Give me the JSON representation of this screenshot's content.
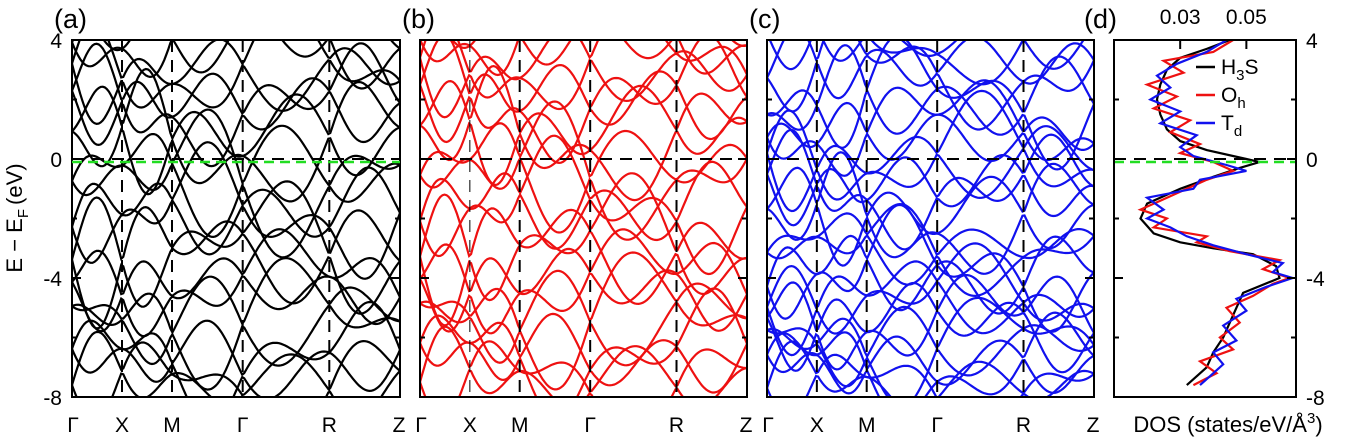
{
  "figure": {
    "ylabel_main": "E − E",
    "ylabel_sub": "F",
    "ylabel_unit": "(eV)"
  },
  "chart_data": [
    {
      "type": "line",
      "panel_label": "(a)",
      "color": "#000000",
      "ylim": [
        -8,
        4
      ],
      "yticks": [
        "4",
        "0",
        "-4",
        "-8"
      ],
      "kpath": [
        "Γ",
        "X",
        "M",
        "Γ",
        "R",
        "Z"
      ],
      "kpath_positions": [
        0,
        0.5,
        1.0,
        1.707,
        2.573,
        3.28
      ],
      "fermi_line_color": "#22dd22",
      "fermi_line_value": -0.1,
      "band_families": [
        {
          "base": -7.6,
          "amp": 1.6,
          "freq": 1.0
        },
        {
          "base": -6.8,
          "amp": 1.8,
          "freq": 1.3
        },
        {
          "base": -5.4,
          "amp": 2.0,
          "freq": 0.8
        },
        {
          "base": -4.2,
          "amp": 1.5,
          "freq": 1.7
        },
        {
          "base": -3.0,
          "amp": 2.2,
          "freq": 1.1
        },
        {
          "base": -1.8,
          "amp": 1.9,
          "freq": 1.5
        },
        {
          "base": -0.6,
          "amp": 2.4,
          "freq": 0.9
        },
        {
          "base": 0.6,
          "amp": 2.1,
          "freq": 1.4
        },
        {
          "base": 1.8,
          "amp": 1.7,
          "freq": 1.9
        },
        {
          "base": 3.0,
          "amp": 1.9,
          "freq": 1.2
        },
        {
          "base": 4.2,
          "amp": 1.6,
          "freq": 1.6
        }
      ]
    },
    {
      "type": "line",
      "panel_label": "(b)",
      "color": "#ee1111",
      "ylim": [
        -8,
        4
      ],
      "kpath": [
        "Γ",
        "X",
        "M",
        "Γ",
        "R",
        "Z"
      ],
      "kpath_positions": [
        0,
        0.5,
        1.0,
        1.707,
        2.573,
        3.28
      ],
      "band_families": [
        {
          "base": -7.5,
          "amp": 1.7,
          "freq": 1.1
        },
        {
          "base": -6.6,
          "amp": 1.8,
          "freq": 1.4
        },
        {
          "base": -5.3,
          "amp": 2.1,
          "freq": 0.8
        },
        {
          "base": -4.1,
          "amp": 1.6,
          "freq": 1.8
        },
        {
          "base": -2.9,
          "amp": 2.2,
          "freq": 1.2
        },
        {
          "base": -1.6,
          "amp": 1.9,
          "freq": 1.6
        },
        {
          "base": -0.4,
          "amp": 2.3,
          "freq": 1.0
        },
        {
          "base": 0.8,
          "amp": 2.0,
          "freq": 1.5
        },
        {
          "base": 2.0,
          "amp": 1.8,
          "freq": 1.9
        },
        {
          "base": 3.2,
          "amp": 1.9,
          "freq": 1.3
        },
        {
          "base": 4.3,
          "amp": 1.5,
          "freq": 1.7
        }
      ]
    },
    {
      "type": "line",
      "panel_label": "(c)",
      "color": "#1111ee",
      "ylim": [
        -8,
        4
      ],
      "kpath": [
        "Γ",
        "X",
        "M",
        "Γ",
        "R",
        "Z"
      ],
      "kpath_positions": [
        0,
        0.5,
        1.0,
        1.707,
        2.573,
        3.28
      ],
      "band_families": [
        {
          "base": -7.7,
          "amp": 1.4,
          "freq": 1.2
        },
        {
          "base": -7.0,
          "amp": 1.5,
          "freq": 1.6
        },
        {
          "base": -6.2,
          "amp": 1.7,
          "freq": 0.9
        },
        {
          "base": -5.4,
          "amp": 1.6,
          "freq": 1.9
        },
        {
          "base": -4.6,
          "amp": 1.5,
          "freq": 1.3
        },
        {
          "base": -3.8,
          "amp": 1.8,
          "freq": 1.7
        },
        {
          "base": -3.0,
          "amp": 1.4,
          "freq": 1.0
        },
        {
          "base": -2.0,
          "amp": 1.9,
          "freq": 1.4
        },
        {
          "base": -1.0,
          "amp": 1.6,
          "freq": 2.0
        },
        {
          "base": 0.0,
          "amp": 1.8,
          "freq": 1.1
        },
        {
          "base": 1.0,
          "amp": 1.5,
          "freq": 1.8
        },
        {
          "base": 2.0,
          "amp": 1.9,
          "freq": 1.3
        },
        {
          "base": 3.0,
          "amp": 1.6,
          "freq": 1.6
        },
        {
          "base": 4.0,
          "amp": 1.4,
          "freq": 1.0
        }
      ]
    },
    {
      "type": "line",
      "panel_label": "(d)",
      "xlabel": "DOS (states/eV/Å",
      "xlabel_sup": "3",
      "xlabel_close": ")",
      "xticks_top": [
        "0.03",
        "0.05"
      ],
      "yticks_right": [
        "4",
        "0",
        "-4",
        "-8"
      ],
      "xlim": [
        0.01,
        0.065
      ],
      "ylim": [
        -8,
        4
      ],
      "legend_placement": "top-right",
      "series": [
        {
          "name": "H",
          "name_sub": "3",
          "name_tail": "S",
          "color": "#000000",
          "energy": [
            -7.6,
            -7,
            -6.5,
            -6,
            -5.5,
            -5,
            -4.5,
            -4,
            -3.6,
            -3.2,
            -3,
            -2.8,
            -2.5,
            -2,
            -1.5,
            -1,
            -0.6,
            -0.3,
            -0.1,
            0,
            0.3,
            0.6,
            1,
            1.5,
            2,
            2.5,
            3,
            3.4,
            3.7,
            4
          ],
          "dos": [
            0.032,
            0.038,
            0.04,
            0.043,
            0.045,
            0.047,
            0.049,
            0.06,
            0.059,
            0.052,
            0.04,
            0.03,
            0.022,
            0.018,
            0.02,
            0.03,
            0.04,
            0.048,
            0.054,
            0.05,
            0.038,
            0.03,
            0.026,
            0.024,
            0.023,
            0.024,
            0.026,
            0.03,
            0.038,
            0.045
          ]
        },
        {
          "name": "O",
          "name_sub": "h",
          "name_tail": "",
          "color": "#ee1111",
          "energy": [
            -7.6,
            -7.2,
            -6.8,
            -6.4,
            -6,
            -5.5,
            -5,
            -4.6,
            -4.2,
            -4,
            -3.7,
            -3.4,
            -3.1,
            -2.8,
            -2.6,
            -2.3,
            -2,
            -1.7,
            -1.4,
            -1,
            -0.7,
            -0.4,
            -0.1,
            0.2,
            0.5,
            0.9,
            1.3,
            1.7,
            2.1,
            2.5,
            2.9,
            3.3,
            3.6,
            4
          ],
          "dos": [
            0.034,
            0.041,
            0.036,
            0.046,
            0.042,
            0.048,
            0.044,
            0.052,
            0.058,
            0.063,
            0.055,
            0.06,
            0.045,
            0.035,
            0.038,
            0.022,
            0.026,
            0.018,
            0.024,
            0.032,
            0.038,
            0.046,
            0.04,
            0.03,
            0.036,
            0.027,
            0.033,
            0.022,
            0.029,
            0.02,
            0.031,
            0.025,
            0.04,
            0.046
          ]
        },
        {
          "name": "T",
          "name_sub": "d",
          "name_tail": "",
          "color": "#1111ee",
          "energy": [
            -7.6,
            -7.3,
            -6.9,
            -6.5,
            -6.1,
            -5.6,
            -5.1,
            -4.7,
            -4.3,
            -4,
            -3.8,
            -3.5,
            -3.2,
            -2.9,
            -2.6,
            -2.3,
            -2,
            -1.7,
            -1.3,
            -1,
            -0.7,
            -0.4,
            -0.2,
            0.1,
            0.4,
            0.8,
            1.2,
            1.6,
            2,
            2.4,
            2.8,
            3.2,
            3.6,
            4
          ],
          "dos": [
            0.036,
            0.039,
            0.043,
            0.04,
            0.047,
            0.043,
            0.05,
            0.047,
            0.056,
            0.064,
            0.058,
            0.061,
            0.05,
            0.04,
            0.032,
            0.027,
            0.02,
            0.025,
            0.02,
            0.034,
            0.036,
            0.05,
            0.044,
            0.034,
            0.03,
            0.035,
            0.024,
            0.03,
            0.021,
            0.027,
            0.023,
            0.029,
            0.038,
            0.044
          ]
        }
      ]
    }
  ]
}
